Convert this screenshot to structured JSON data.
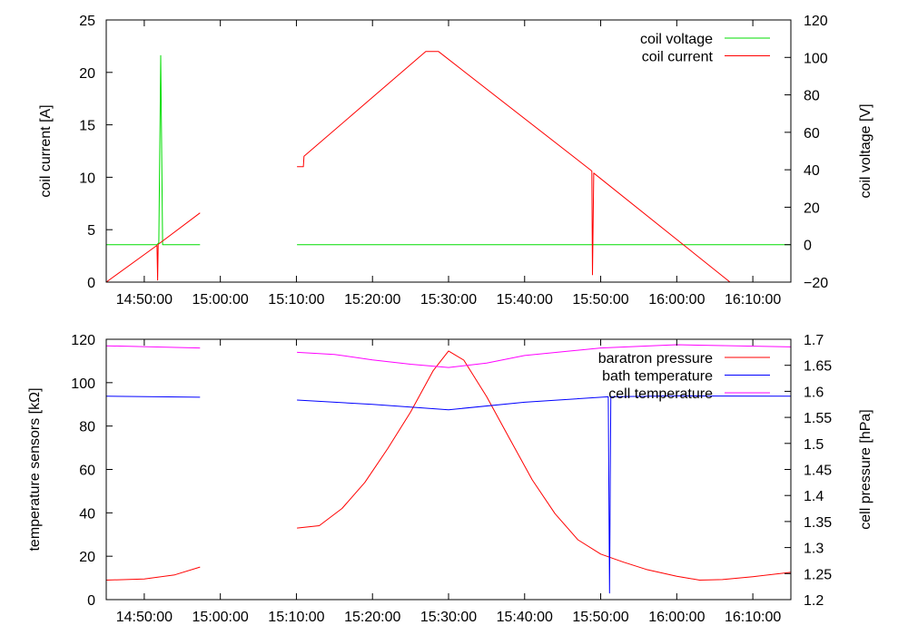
{
  "chart_data": [
    {
      "type": "line",
      "ylabel": "coil current [A]",
      "y2label": "coil voltage [V]",
      "xlim": [
        "14:45:00",
        "16:15:00"
      ],
      "ylim": [
        0,
        25
      ],
      "y2lim": [
        -20,
        120
      ],
      "x_ticks": [
        "14:50:00",
        "15:00:00",
        "15:10:00",
        "15:20:00",
        "15:30:00",
        "15:40:00",
        "15:50:00",
        "16:00:00",
        "16:10:00"
      ],
      "y_ticks": [
        "0",
        "5",
        "10",
        "15",
        "20",
        "25"
      ],
      "y2_ticks": [
        "−20",
        "0",
        "20",
        "40",
        "60",
        "80",
        "100",
        "120"
      ],
      "grid": false,
      "legend": "top-right",
      "series": [
        {
          "name": "coil voltage",
          "color": "#00dd00",
          "axis": "right",
          "segments": [
            [
              [
                "14:45:00",
                0
              ],
              [
                "14:51:40",
                0
              ],
              [
                "14:51:55",
                1
              ],
              [
                "14:52:10",
                101
              ],
              [
                "14:52:25",
                0
              ],
              [
                "14:57:20",
                0
              ]
            ],
            [
              [
                "15:10:05",
                0
              ],
              [
                "16:15:00",
                0
              ]
            ]
          ]
        },
        {
          "name": "coil current",
          "color": "#ff0000",
          "axis": "left",
          "segments": [
            [
              [
                "14:45:00",
                0
              ],
              [
                "14:51:40",
                3.5
              ],
              [
                "14:51:45",
                0.2
              ],
              [
                "14:51:50",
                3.6
              ],
              [
                "14:57:20",
                6.6
              ]
            ],
            [
              [
                "15:10:05",
                11
              ],
              [
                "15:10:55",
                11
              ],
              [
                "15:11:00",
                12
              ],
              [
                "15:27:00",
                22
              ],
              [
                "15:28:40",
                22
              ],
              [
                "15:48:50",
                10.6
              ],
              [
                "15:48:55",
                0.7
              ],
              [
                "15:49:05",
                10.4
              ],
              [
                "16:07:00",
                0
              ],
              [
                "16:15:00",
                0
              ]
            ]
          ]
        }
      ]
    },
    {
      "type": "line",
      "ylabel": "temperature sensors [kΩ]",
      "y2label": "cell pressure [hPa]",
      "xlim": [
        "14:45:00",
        "16:15:00"
      ],
      "ylim": [
        0,
        120
      ],
      "y2lim": [
        1.2,
        1.7
      ],
      "x_ticks": [
        "14:50:00",
        "15:00:00",
        "15:10:00",
        "15:20:00",
        "15:30:00",
        "15:40:00",
        "15:50:00",
        "16:00:00",
        "16:10:00"
      ],
      "y_ticks": [
        "0",
        "20",
        "40",
        "60",
        "80",
        "100",
        "120"
      ],
      "y2_ticks": [
        "1.2",
        "1.25",
        "1.3",
        "1.35",
        "1.4",
        "1.45",
        "1.5",
        "1.55",
        "1.6",
        "1.65",
        "1.7"
      ],
      "grid": false,
      "legend": "top-right",
      "series": [
        {
          "name": "baratron pressure",
          "color": "#ff0000",
          "axis": "right",
          "segments": [
            [
              [
                "14:45:00",
                1.2375
              ],
              [
                "14:50:00",
                1.2395
              ],
              [
                "14:54:00",
                1.2475
              ],
              [
                "14:57:20",
                1.2625
              ]
            ],
            [
              [
                "15:10:05",
                1.3375
              ],
              [
                "15:13:00",
                1.342
              ],
              [
                "15:16:00",
                1.375
              ],
              [
                "15:19:00",
                1.425
              ],
              [
                "15:22:00",
                1.49
              ],
              [
                "15:25:00",
                1.56
              ],
              [
                "15:28:00",
                1.64
              ],
              [
                "15:30:00",
                1.6775
              ],
              [
                "15:32:00",
                1.66
              ],
              [
                "15:35:00",
                1.59
              ],
              [
                "15:38:00",
                1.51
              ],
              [
                "15:41:00",
                1.43
              ],
              [
                "15:44:00",
                1.365
              ],
              [
                "15:47:00",
                1.315
              ],
              [
                "15:50:00",
                1.2875
              ],
              [
                "15:53:00",
                1.272
              ],
              [
                "15:56:00",
                1.258
              ],
              [
                "16:00:00",
                1.245
              ],
              [
                "16:03:00",
                1.2375
              ],
              [
                "16:06:00",
                1.2385
              ],
              [
                "16:10:00",
                1.244
              ],
              [
                "16:15:00",
                1.2525
              ]
            ]
          ]
        },
        {
          "name": "bath temperature",
          "color": "#0000ff",
          "axis": "left",
          "segments": [
            [
              [
                "14:45:00",
                93.8
              ],
              [
                "14:57:20",
                93.3
              ]
            ],
            [
              [
                "15:10:05",
                92.0
              ],
              [
                "15:20:00",
                90.0
              ],
              [
                "15:30:00",
                87.5
              ],
              [
                "15:40:00",
                91.0
              ],
              [
                "15:51:00",
                93.5
              ],
              [
                "15:51:10",
                3.0
              ],
              [
                "15:51:20",
                93.5
              ],
              [
                "16:00:00",
                93.9
              ],
              [
                "16:15:00",
                93.8
              ]
            ]
          ]
        },
        {
          "name": "cell temperature",
          "color": "#ff00ff",
          "axis": "left",
          "segments": [
            [
              [
                "14:45:00",
                117
              ],
              [
                "14:57:20",
                116
              ]
            ],
            [
              [
                "15:10:05",
                114
              ],
              [
                "15:15:00",
                113
              ],
              [
                "15:20:00",
                110.5
              ],
              [
                "15:25:00",
                108.5
              ],
              [
                "15:30:00",
                107
              ],
              [
                "15:35:00",
                109
              ],
              [
                "15:40:00",
                112.5
              ],
              [
                "15:50:00",
                116
              ],
              [
                "16:00:00",
                117.5
              ],
              [
                "16:15:00",
                116.5
              ]
            ]
          ]
        }
      ]
    }
  ]
}
